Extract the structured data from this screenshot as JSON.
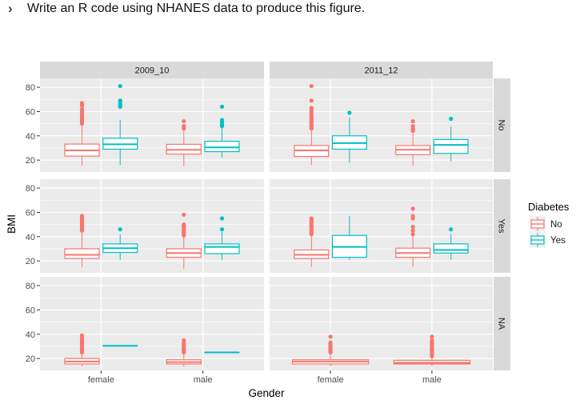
{
  "prompt": {
    "icon": "chevron-right-icon",
    "text": "Write an R code using NHANES data to produce this figure."
  },
  "chart_data": {
    "type": "boxplot",
    "facet_cols": [
      "2009_10",
      "2011_12"
    ],
    "facet_rows": [
      "No",
      "Yes",
      "NA"
    ],
    "categories": [
      "female",
      "male"
    ],
    "xlabel": "Gender",
    "ylabel": "BMI",
    "yticks": [
      20,
      40,
      60,
      80
    ],
    "ylim": [
      10.2,
      87.3
    ],
    "grid": true,
    "legend": {
      "title": "Diabetes",
      "position": "right",
      "entries": [
        {
          "label": "No",
          "color": "#F8766D"
        },
        {
          "label": "Yes",
          "color": "#00BFC4"
        }
      ]
    },
    "panels": [
      {
        "col": "2009_10",
        "row": "No",
        "boxes": [
          {
            "gender": "female",
            "diabetes": "No",
            "lower": 15.4,
            "q1": 23.3,
            "median": 28,
            "q3": 33.2,
            "upper": 48.4,
            "outliers": [
              50,
              51,
              52,
              53,
              54,
              55,
              56,
              57,
              59,
              60,
              61,
              62,
              65,
              66,
              67
            ]
          },
          {
            "gender": "female",
            "diabetes": "Yes",
            "lower": 16,
            "q1": 29,
            "median": 33,
            "q3": 38,
            "upper": 53,
            "outliers": [
              64,
              65,
              66,
              68,
              69,
              81
            ]
          },
          {
            "gender": "male",
            "diabetes": "No",
            "lower": 15,
            "q1": 25,
            "median": 28.5,
            "q3": 33,
            "upper": 45,
            "outliers": [
              46,
              47,
              48,
              52
            ]
          },
          {
            "gender": "male",
            "diabetes": "Yes",
            "lower": 22,
            "q1": 27,
            "median": 30.5,
            "q3": 35.5,
            "upper": 47,
            "outliers": [
              48,
              49,
              51,
              53,
              64
            ]
          }
        ]
      },
      {
        "col": "2011_12",
        "row": "No",
        "boxes": [
          {
            "gender": "female",
            "diabetes": "No",
            "lower": 16,
            "q1": 23,
            "median": 28,
            "q3": 32,
            "upper": 44.5,
            "outliers": [
              46,
              47,
              48,
              49,
              50,
              51,
              52,
              53,
              54,
              55,
              56,
              57,
              58,
              60,
              62,
              63,
              69,
              81
            ]
          },
          {
            "gender": "female",
            "diabetes": "Yes",
            "lower": 18,
            "q1": 29,
            "median": 34,
            "q3": 40,
            "upper": 55,
            "outliers": [
              59
            ]
          },
          {
            "gender": "male",
            "diabetes": "No",
            "lower": 15.4,
            "q1": 24.5,
            "median": 28.5,
            "q3": 32,
            "upper": 42,
            "outliers": [
              44,
              45,
              46,
              48,
              52
            ]
          },
          {
            "gender": "male",
            "diabetes": "Yes",
            "lower": 19,
            "q1": 25.5,
            "median": 32.5,
            "q3": 37,
            "upper": 47.7,
            "outliers": [
              54
            ]
          }
        ]
      },
      {
        "col": "2009_10",
        "row": "Yes",
        "boxes": [
          {
            "gender": "female",
            "diabetes": "No",
            "lower": 15,
            "q1": 22,
            "median": 25,
            "q3": 30,
            "upper": 44,
            "outliers": [
              45,
              46,
              47,
              48,
              49,
              50,
              51,
              52,
              53,
              54,
              55,
              57
            ]
          },
          {
            "gender": "female",
            "diabetes": "Yes",
            "lower": 21,
            "q1": 27,
            "median": 30.5,
            "q3": 34,
            "upper": 42,
            "outliers": [
              46
            ]
          },
          {
            "gender": "male",
            "diabetes": "No",
            "lower": 13.5,
            "q1": 23,
            "median": 26.5,
            "q3": 30,
            "upper": 40,
            "outliers": [
              41,
              42,
              43,
              44,
              45,
              46,
              47,
              48,
              49,
              50,
              58
            ]
          },
          {
            "gender": "male",
            "diabetes": "Yes",
            "lower": 21,
            "q1": 26,
            "median": 31.5,
            "q3": 34,
            "upper": 44,
            "outliers": [
              46,
              55
            ]
          }
        ]
      },
      {
        "col": "2011_12",
        "row": "Yes",
        "boxes": [
          {
            "gender": "female",
            "diabetes": "No",
            "lower": 15,
            "q1": 22,
            "median": 25,
            "q3": 29,
            "upper": 41,
            "outliers": [
              42,
              43,
              44,
              45,
              46,
              47,
              48,
              49,
              50,
              51,
              52,
              53,
              54,
              55
            ]
          },
          {
            "gender": "female",
            "diabetes": "Yes",
            "lower": 21,
            "q1": 23,
            "median": 31.5,
            "q3": 41,
            "upper": 57,
            "outliers": []
          },
          {
            "gender": "male",
            "diabetes": "No",
            "lower": 15,
            "q1": 23,
            "median": 26.5,
            "q3": 30.5,
            "upper": 41,
            "outliers": [
              42,
              45,
              48,
              55,
              57,
              63
            ]
          },
          {
            "gender": "male",
            "diabetes": "Yes",
            "lower": 21,
            "q1": 26.5,
            "median": 29,
            "q3": 34,
            "upper": 42,
            "outliers": [
              46
            ]
          }
        ]
      },
      {
        "col": "2009_10",
        "row": "NA",
        "boxes": [
          {
            "gender": "female",
            "diabetes": "No",
            "lower": 13.5,
            "q1": 15.5,
            "median": 17.5,
            "q3": 20,
            "upper": 24.5,
            "outliers": [
              25,
              26,
              27,
              28,
              29,
              30,
              31,
              32,
              33,
              34,
              35,
              36,
              37,
              39
            ]
          },
          {
            "gender": "female",
            "diabetes": "Yes",
            "lower": 30.5,
            "q1": 30.5,
            "median": 30.5,
            "q3": 30.5,
            "upper": 30.5,
            "outliers": []
          },
          {
            "gender": "male",
            "diabetes": "No",
            "lower": 13.5,
            "q1": 15.5,
            "median": 17,
            "q3": 19,
            "upper": 24,
            "outliers": [
              25,
              26,
              27,
              28,
              29,
              30,
              31,
              32,
              33,
              35
            ]
          },
          {
            "gender": "male",
            "diabetes": "Yes",
            "lower": 25,
            "q1": 25,
            "median": 25,
            "q3": 25,
            "upper": 25,
            "outliers": []
          }
        ]
      },
      {
        "col": "2011_12",
        "row": "NA",
        "boxes": [
          {
            "gender": "female",
            "diabetes": "No",
            "lower": 13.5,
            "q1": 15.5,
            "median": 17.5,
            "q3": 19,
            "upper": 24.5,
            "outliers": [
              25,
              26,
              27,
              28,
              29,
              30,
              31,
              32,
              33,
              38
            ]
          },
          {
            "gender": "male",
            "diabetes": "No",
            "lower": 13.5,
            "q1": 15.5,
            "median": 16.5,
            "q3": 18.5,
            "upper": 21,
            "outliers": [
              22,
              23,
              24,
              25,
              26,
              27,
              28,
              29,
              30,
              31,
              32,
              33,
              34,
              35,
              38
            ]
          }
        ]
      }
    ]
  }
}
